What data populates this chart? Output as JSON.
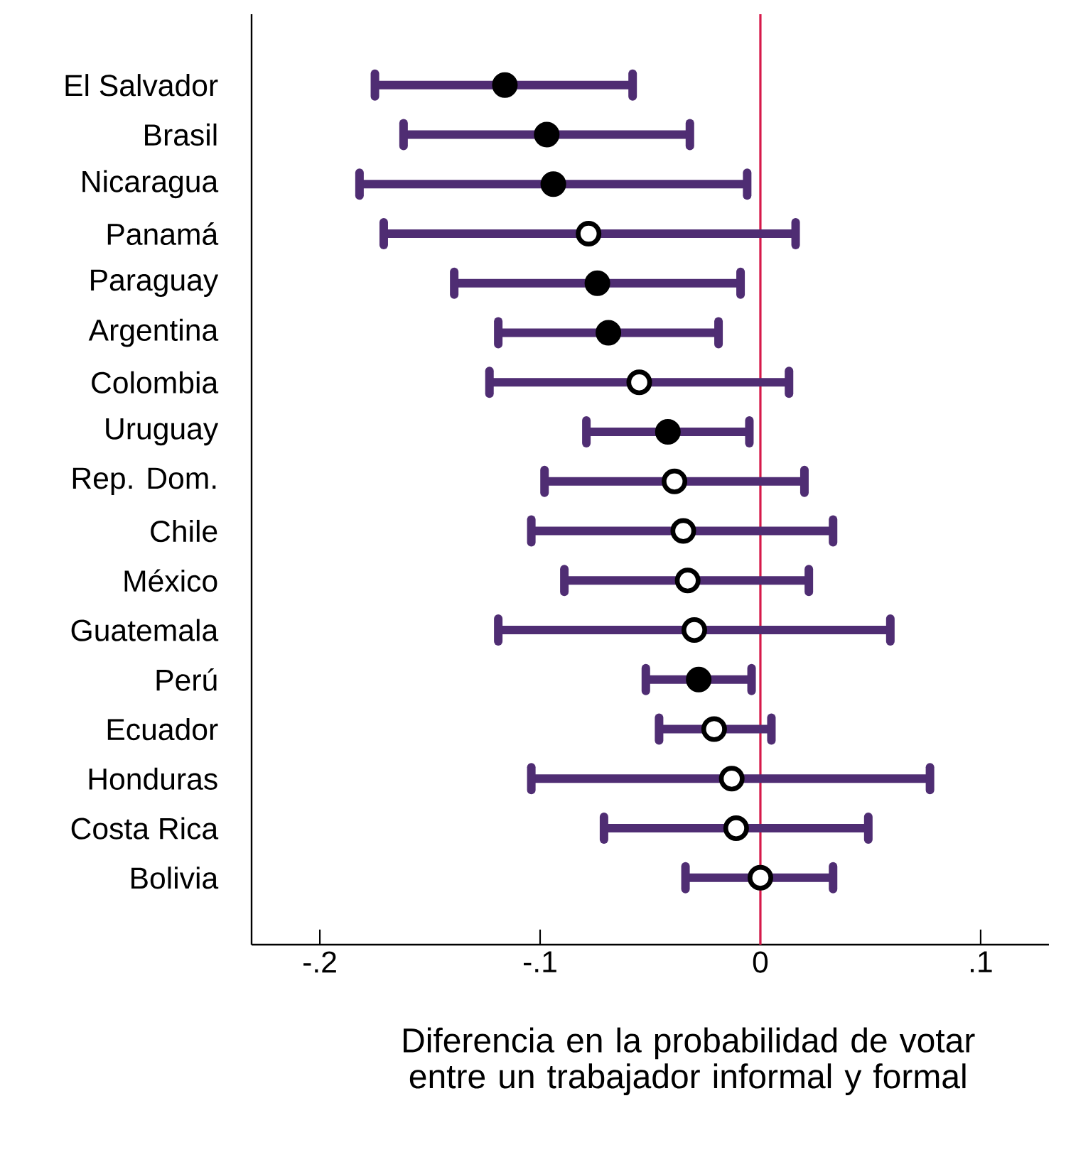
{
  "chart_data": {
    "type": "scatter",
    "orientation": "horizontal",
    "xlabel": "Diferencia en la probabilidad de votar entre un trabajador informal y formal",
    "categories": [
      "El Salvador",
      "Brasil",
      "Nicaragua",
      "Panamá",
      "Paraguay",
      "Argentina",
      "Colombia",
      "Uruguay",
      "Rep. Dom.",
      "Chile",
      "México",
      "Guatemala",
      "Perú",
      "Ecuador",
      "Honduras",
      "Costa Rica",
      "Bolivia"
    ],
    "series": [
      {
        "color": "#000000",
        "values": [
          -0.116,
          -0.097,
          -0.094,
          null,
          -0.074,
          -0.069,
          null,
          -0.042,
          null,
          null,
          null,
          null,
          -0.028,
          null,
          null,
          null,
          null
        ],
        "errors": [
          [
            -0.175,
            -0.058
          ],
          [
            -0.162,
            -0.032
          ],
          [
            -0.182,
            -0.006
          ],
          null,
          [
            -0.139,
            -0.009
          ],
          [
            -0.119,
            -0.019
          ],
          null,
          [
            -0.079,
            -0.005
          ],
          null,
          null,
          null,
          null,
          [
            -0.052,
            -0.004
          ],
          null,
          null,
          null,
          null
        ]
      },
      {
        "color": "#ffffff",
        "values": [
          null,
          null,
          null,
          -0.078,
          null,
          null,
          -0.055,
          null,
          -0.039,
          -0.035,
          -0.033,
          -0.03,
          null,
          -0.021,
          -0.013,
          -0.011,
          0.0
        ],
        "errors": [
          null,
          null,
          null,
          [
            -0.171,
            0.016
          ],
          null,
          null,
          [
            -0.123,
            0.013
          ],
          null,
          [
            -0.098,
            0.02
          ],
          [
            -0.104,
            0.033
          ],
          [
            -0.089,
            0.022
          ],
          [
            -0.119,
            0.059
          ],
          null,
          [
            -0.046,
            0.005
          ],
          [
            -0.104,
            0.077
          ],
          [
            -0.071,
            0.049
          ],
          [
            -0.034,
            0.033
          ]
        ]
      }
    ],
    "xlim": [
      -0.231,
      0.131
    ],
    "xticks": [
      {
        "value": -0.2,
        "label": "-.2"
      },
      {
        "value": -0.1,
        "label": "-.1"
      },
      {
        "value": 0,
        "label": "0"
      },
      {
        "value": 0.1,
        "label": ".1"
      }
    ],
    "ref_lines": [
      {
        "axis": "x",
        "value": 0,
        "color": "#d6194a"
      }
    ]
  }
}
